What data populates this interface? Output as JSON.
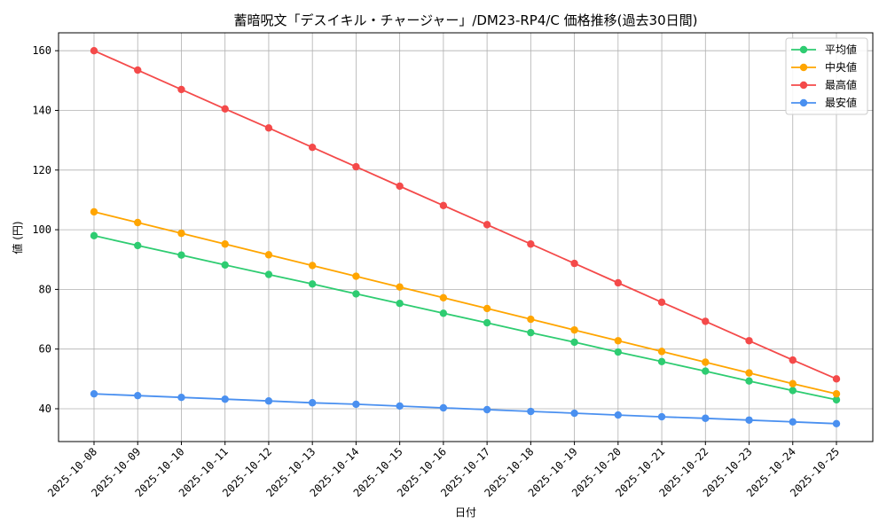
{
  "chart_data": {
    "type": "line",
    "title": "蓄暗呪文「デスイキル・チャージャー」/DM23-RP4/C 価格推移(過去30日間)",
    "xlabel": "日付",
    "ylabel": "値 (円)",
    "ylim": [
      29,
      166
    ],
    "yticks": [
      40,
      60,
      80,
      100,
      120,
      140,
      160
    ],
    "grid": true,
    "legend_position": "top-right",
    "categories": [
      "2025-10-08",
      "2025-10-09",
      "2025-10-10",
      "2025-10-11",
      "2025-10-12",
      "2025-10-13",
      "2025-10-14",
      "2025-10-15",
      "2025-10-16",
      "2025-10-17",
      "2025-10-18",
      "2025-10-19",
      "2025-10-20",
      "2025-10-21",
      "2025-10-22",
      "2025-10-23",
      "2025-10-24",
      "2025-10-25"
    ],
    "series": [
      {
        "name": "平均値",
        "color": "#2ecc71",
        "values": [
          98,
          94.7,
          91.5,
          88.2,
          85,
          81.8,
          78.5,
          75.3,
          72,
          68.8,
          65.5,
          62.3,
          59,
          55.8,
          52.6,
          49.3,
          46.1,
          43
        ]
      },
      {
        "name": "中央値",
        "color": "#ffa500",
        "values": [
          106,
          102.4,
          98.8,
          95.2,
          91.6,
          88,
          84.4,
          80.8,
          77.2,
          73.6,
          70,
          66.4,
          62.8,
          59.2,
          55.6,
          52,
          48.4,
          45
        ]
      },
      {
        "name": "最高値",
        "color": "#f44a4a",
        "values": [
          160,
          153.5,
          147,
          140.5,
          134.1,
          127.6,
          121.1,
          114.6,
          108.1,
          101.7,
          95.2,
          88.7,
          82.2,
          75.7,
          69.3,
          62.8,
          56.3,
          50
        ]
      },
      {
        "name": "最安値",
        "color": "#4a90f0",
        "values": [
          45,
          44.4,
          43.8,
          43.2,
          42.6,
          42,
          41.5,
          40.9,
          40.3,
          39.7,
          39.1,
          38.5,
          37.9,
          37.3,
          36.8,
          36.2,
          35.6,
          35
        ]
      }
    ]
  }
}
